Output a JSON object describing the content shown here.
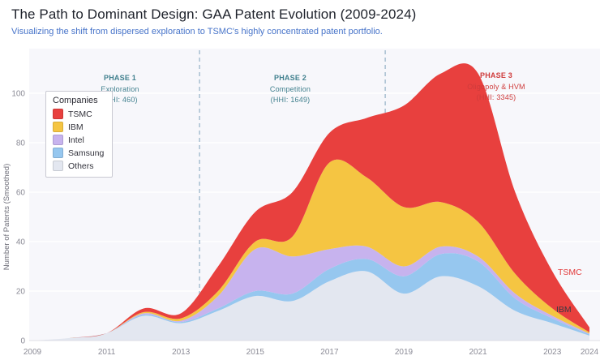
{
  "header": {
    "title": "The Path to Dominant Design: GAA Patent Evolution (2009-2024)",
    "subtitle": "Visualizing the shift from dispersed exploration to TSMC's highly concentrated patent portfolio."
  },
  "legend": {
    "title": "Companies"
  },
  "annotations": {
    "phase1": {
      "title": "PHASE 1",
      "label": "Exploration",
      "hhi": "(HHI: 460)"
    },
    "phase2": {
      "title": "PHASE 2",
      "label": "Competition",
      "hhi": "(HHI: 1649)"
    },
    "phase3": {
      "title": "PHASE 3",
      "label": "Oligopoly & HVM",
      "hhi": "(HHI: 3345)"
    }
  },
  "end_labels": {
    "tsmc": "TSMC",
    "ibm": "IBM"
  },
  "chart_data": {
    "type": "area",
    "stacked": true,
    "title": "The Path to Dominant Design: GAA Patent Evolution (2009-2024)",
    "xlabel": "",
    "ylabel": "Number of Patents (Smoothed)",
    "x": [
      2009,
      2010,
      2011,
      2012,
      2013,
      2014,
      2015,
      2016,
      2017,
      2018,
      2019,
      2020,
      2021,
      2022,
      2023,
      2024
    ],
    "series": [
      {
        "name": "TSMC",
        "color": "#e8403e",
        "values": [
          0,
          0,
          0,
          1.5,
          2,
          10,
          12,
          18,
          12,
          24,
          41,
          52,
          60,
          33,
          15,
          2
        ]
      },
      {
        "name": "IBM",
        "color": "#f5c542",
        "values": [
          0,
          0,
          0,
          0.5,
          1,
          2,
          3,
          8,
          35,
          28,
          24,
          18,
          14,
          8,
          3,
          0.5
        ]
      },
      {
        "name": "Intel",
        "color": "#c7b3ee",
        "values": [
          0,
          0,
          0,
          0.5,
          0.5,
          5,
          17,
          15,
          8,
          5,
          4,
          3,
          2,
          2,
          1,
          0.3
        ]
      },
      {
        "name": "Samsung",
        "color": "#96c7ef",
        "values": [
          0,
          0,
          0,
          0.5,
          0.5,
          1,
          2,
          3,
          5,
          5,
          7,
          9,
          10,
          5,
          2,
          0.5
        ]
      },
      {
        "name": "Others",
        "color": "#e3e7f0",
        "values": [
          0,
          1,
          3,
          10,
          7,
          12,
          18,
          16,
          24,
          28,
          19,
          26,
          22,
          12,
          7,
          2
        ]
      }
    ],
    "stack_bottom_to_top": [
      "Others",
      "Samsung",
      "Intel",
      "IBM",
      "TSMC"
    ],
    "y_ticks": [
      0,
      20,
      40,
      60,
      80,
      100
    ],
    "x_ticks": [
      2009,
      2011,
      2013,
      2015,
      2017,
      2019,
      2021,
      2023,
      2024
    ],
    "ylim": [
      0,
      115
    ],
    "xlim": [
      2009,
      2024.3
    ],
    "phase_lines_x": [
      2013.5,
      2018.5
    ],
    "grid": "horizontal",
    "legend_position": "upper-left",
    "plot_bg": "#f7f7fb",
    "grid_color": "#ffffff",
    "phase_line_color": "#93b0c6"
  }
}
